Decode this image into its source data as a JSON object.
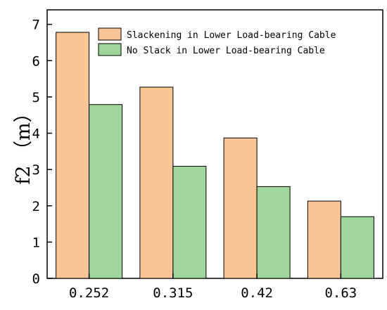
{
  "chart_data": {
    "type": "bar",
    "title": "",
    "xlabel": "",
    "ylabel": "f2 （m）",
    "categories": [
      "0.252",
      "0.315",
      "0.42",
      "0.63"
    ],
    "series": [
      {
        "name": "Slackening in Lower Load-bearing Cable",
        "color": "#F9C594",
        "values": [
          6.78,
          5.27,
          3.87,
          2.13
        ]
      },
      {
        "name": "No Slack in Lower Load-bearing Cable",
        "color": "#9ED69B",
        "values": [
          4.79,
          3.09,
          2.53,
          1.7
        ]
      }
    ],
    "ylim": [
      0,
      7.4
    ],
    "yticks": [
      "0",
      "1",
      "2",
      "3",
      "4",
      "5",
      "6",
      "7"
    ],
    "grid": false,
    "legend": "top-right"
  }
}
